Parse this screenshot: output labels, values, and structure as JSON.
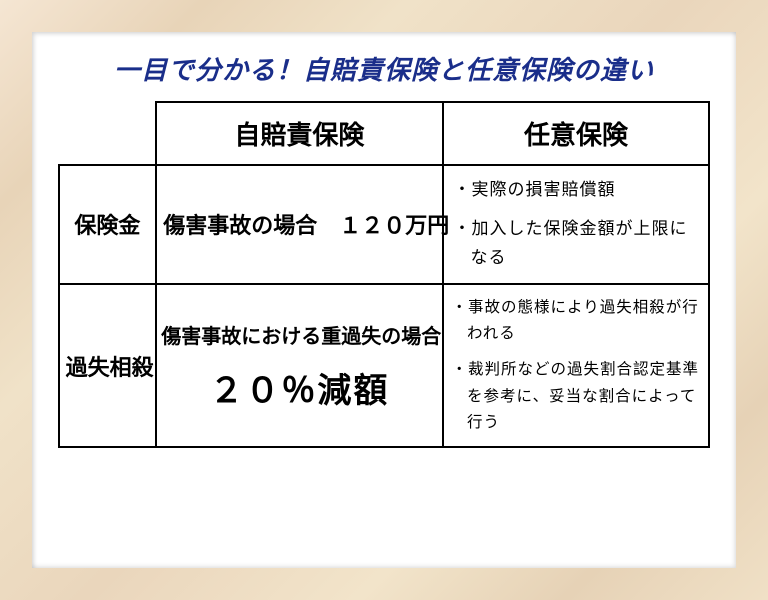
{
  "title": "一目で分かる！自賠責保険と任意保険の違い",
  "colors": {
    "title": "#1a2e8a",
    "border": "#000000",
    "frame_wood": "#ead6bc",
    "background": "#ffffff"
  },
  "table": {
    "columns": [
      "自賠責保険",
      "任意保険"
    ],
    "rows": [
      {
        "header": "保険金",
        "col_a": "傷害事故の場合　１２０万円",
        "col_b_items": [
          "・実際の損害賠償額",
          "・加入した保険金額が上限になる"
        ]
      },
      {
        "header": "過失相殺",
        "col_a_line1": "傷害事故における重過失の場合",
        "col_a_line2": "２０％減額",
        "col_b_items": [
          "・事故の態様により過失相殺が行われる",
          "・裁判所などの過失割合認定基準を参考に、妥当な割合によって行う"
        ]
      }
    ]
  },
  "typography": {
    "title_fontsize": 26,
    "header_fontsize": 26,
    "body_fontsize": 17,
    "emphasis_fontsize": 34,
    "font_family": "Mincho"
  }
}
